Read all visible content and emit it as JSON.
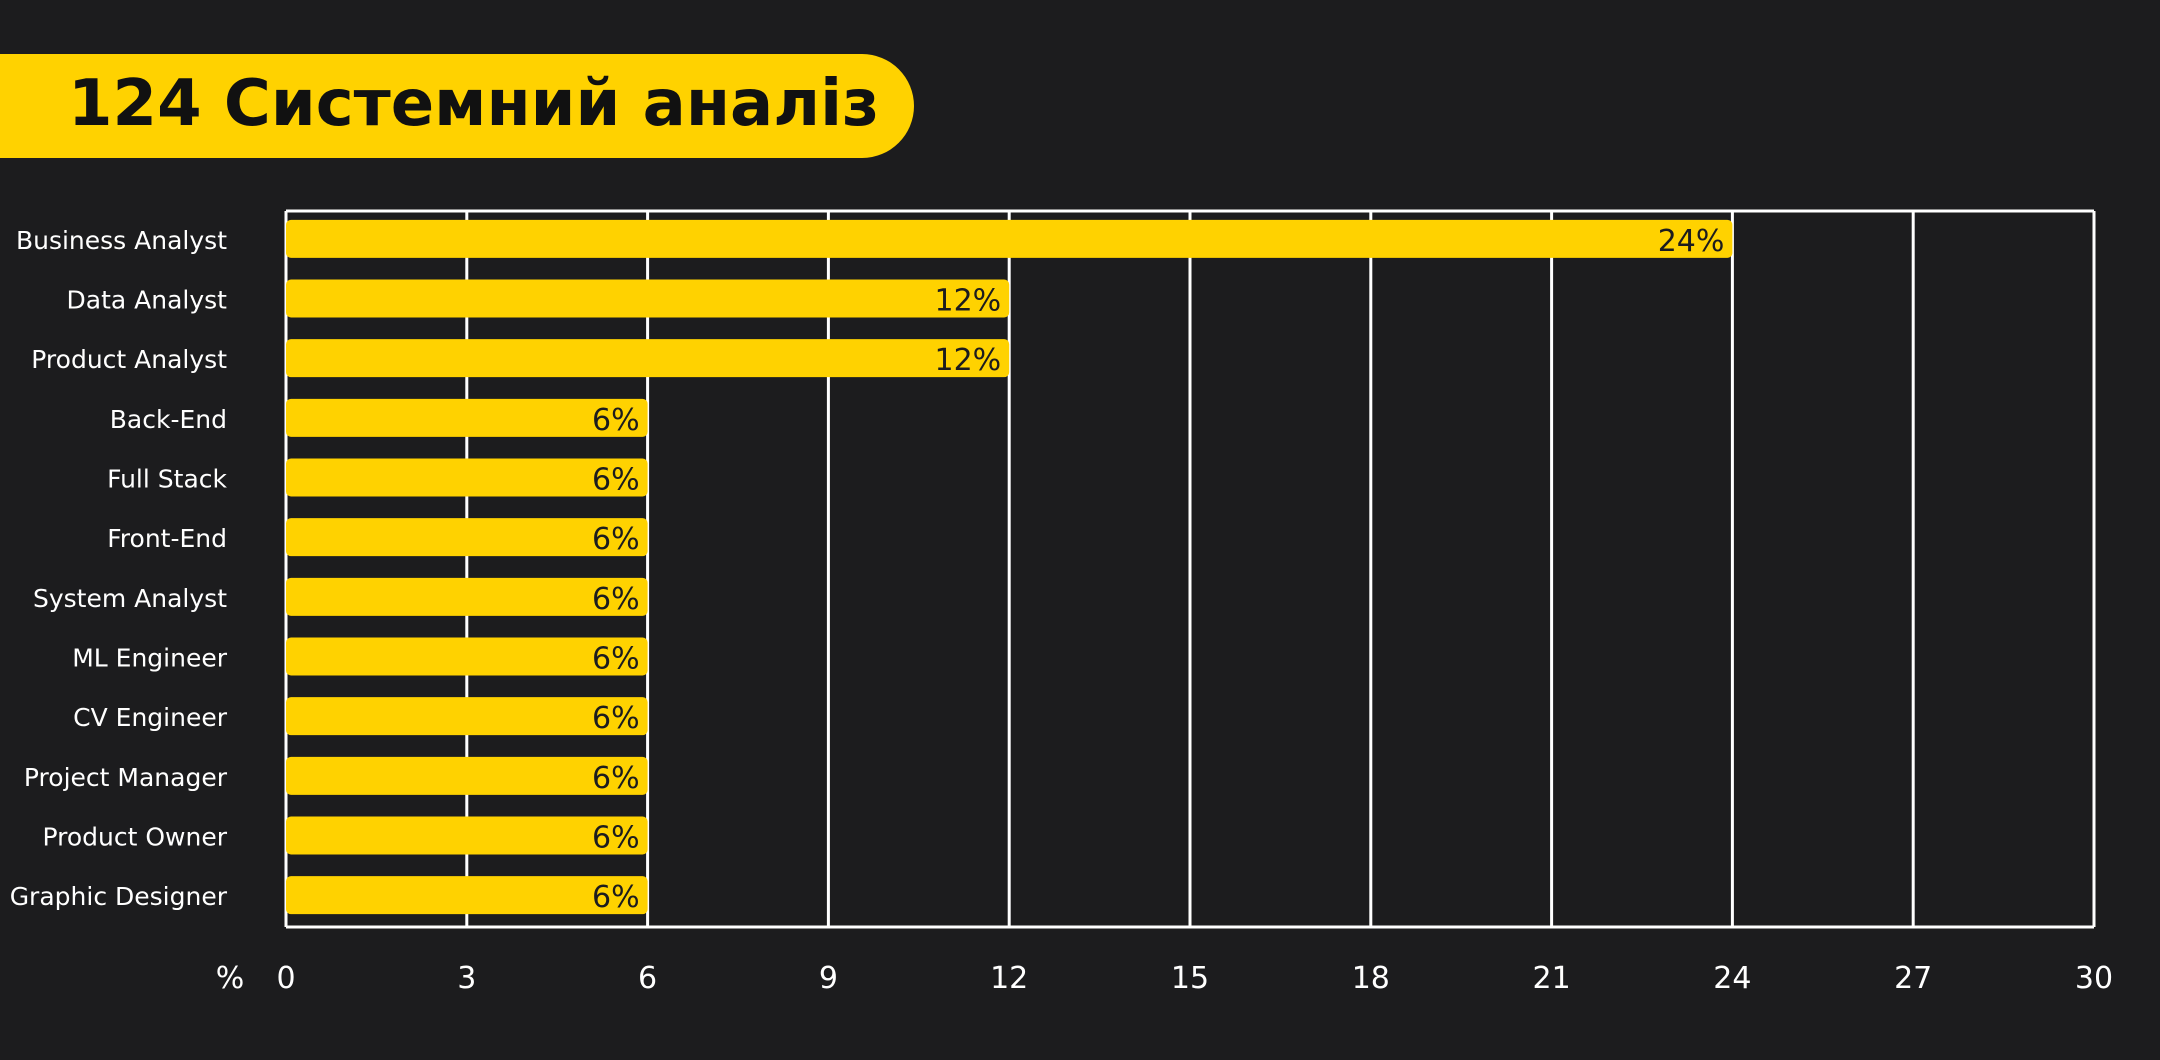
{
  "title": "124 Системний аналіз",
  "colors": {
    "background": "#1c1c1e",
    "accent": "#ffd200",
    "grid": "#ffffff",
    "label": "#ffffff",
    "value_text": "#1c1c1e"
  },
  "chart_data": {
    "type": "bar",
    "orientation": "horizontal",
    "categories": [
      "Business Analyst",
      "Data Analyst",
      "Product Analyst",
      "Back-End",
      "Full Stack",
      "Front-End",
      "System Analyst",
      "ML Engineer",
      "CV Engineer",
      "Project Manager",
      "Product Owner",
      "Graphic Designer"
    ],
    "values": [
      24,
      12,
      12,
      6,
      6,
      6,
      6,
      6,
      6,
      6,
      6,
      6
    ],
    "data_labels": [
      "24%",
      "12%",
      "12%",
      "6%",
      "6%",
      "6%",
      "6%",
      "6%",
      "6%",
      "6%",
      "6%",
      "6%"
    ],
    "xlabel": "%",
    "xlim": [
      0,
      30
    ],
    "xticks": [
      "0",
      "3",
      "6",
      "9",
      "12",
      "15",
      "18",
      "21",
      "24",
      "27",
      "30"
    ],
    "grid": true
  }
}
